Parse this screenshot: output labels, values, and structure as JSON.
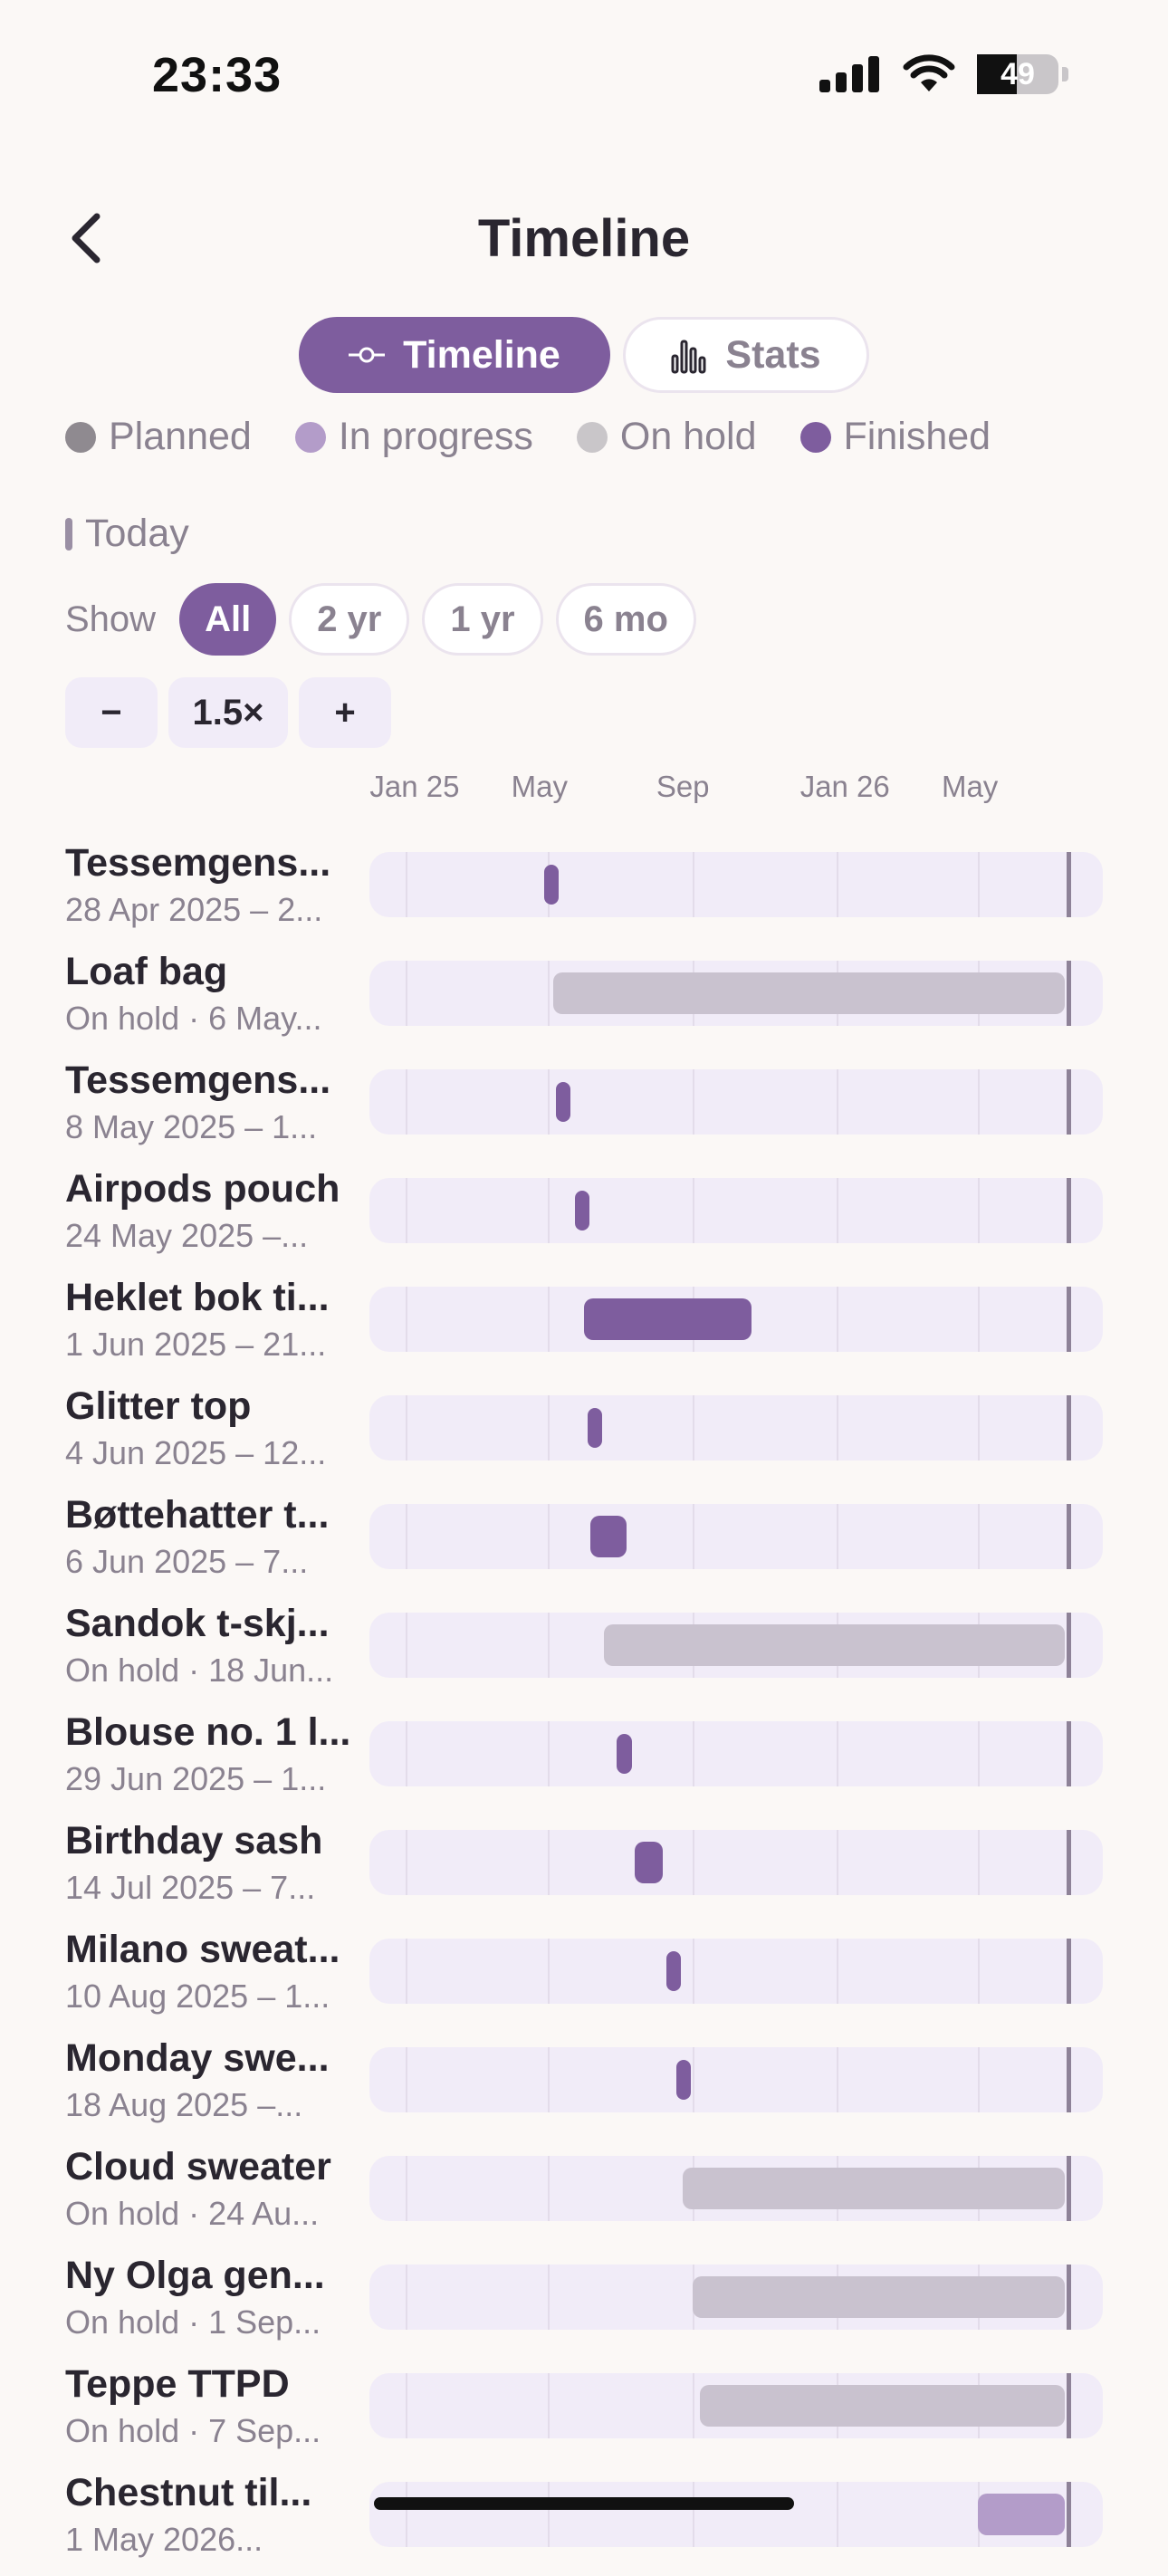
{
  "status_bar": {
    "time": "23:33",
    "battery": "49",
    "battery_level": 0.49
  },
  "nav": {
    "title": "Timeline"
  },
  "segments": [
    {
      "label": "Timeline",
      "icon": "commit-icon",
      "active": true
    },
    {
      "label": "Stats",
      "icon": "bar-chart-icon",
      "active": false
    }
  ],
  "legend": [
    {
      "label": "Planned",
      "color": "#8f8a90"
    },
    {
      "label": "In progress",
      "color": "#b39cc9"
    },
    {
      "label": "On hold",
      "color": "#c9c6c9"
    },
    {
      "label": "Finished",
      "color": "#7e5d9e"
    }
  ],
  "today_label": "Today",
  "filters": {
    "label": "Show",
    "options": [
      "All",
      "2 yr",
      "1 yr",
      "6 mo"
    ],
    "selected": "All"
  },
  "zoom": {
    "minus": "−",
    "value": "1.5×",
    "plus": "+"
  },
  "colors": {
    "finished": "#7e5d9e",
    "on_hold": "#c9c2cf",
    "in_progress": "#b39cc9",
    "track": "#f1ecf8",
    "accent": "#7e5d9e"
  },
  "timeline": {
    "range_start": "2024-12-01",
    "range_end": "2026-08-15",
    "today": "2026-07-15",
    "gridlines": [
      "2025-01-01",
      "2025-05-01",
      "2025-09-01",
      "2026-01-01",
      "2026-05-01"
    ],
    "month_labels": [
      {
        "text": "Jan 25",
        "date": "2025-01-01"
      },
      {
        "text": "May",
        "date": "2025-05-01"
      },
      {
        "text": "Sep",
        "date": "2025-09-01"
      },
      {
        "text": "Jan 26",
        "date": "2026-01-01"
      },
      {
        "text": "May",
        "date": "2026-05-01"
      }
    ]
  },
  "projects": [
    {
      "name": "Tessemgens...",
      "subtitle": "28 Apr 2025 – 2...",
      "status": "finished",
      "start": "2025-04-28",
      "end": "2025-05-02"
    },
    {
      "name": "Loaf bag",
      "subtitle": "On hold · 6 May...",
      "status": "on_hold",
      "start": "2025-05-06",
      "end": "2026-07-14"
    },
    {
      "name": "Tessemgens...",
      "subtitle": "8 May 2025 – 1...",
      "status": "finished",
      "start": "2025-05-08",
      "end": "2025-05-12"
    },
    {
      "name": "Airpods pouch",
      "subtitle": "24 May 2025 –...",
      "status": "finished",
      "start": "2025-05-24",
      "end": "2025-05-30"
    },
    {
      "name": "Heklet bok ti...",
      "subtitle": "1 Jun 2025 – 21...",
      "status": "finished",
      "start": "2025-06-01",
      "end": "2025-10-21"
    },
    {
      "name": "Glitter top",
      "subtitle": "4 Jun 2025 – 12...",
      "status": "finished",
      "start": "2025-06-04",
      "end": "2025-06-12"
    },
    {
      "name": "Bøttehatter t...",
      "subtitle": "6 Jun 2025 – 7...",
      "status": "finished",
      "start": "2025-06-06",
      "end": "2025-07-07"
    },
    {
      "name": "Sandok t-skj...",
      "subtitle": "On hold · 18 Jun...",
      "status": "on_hold",
      "start": "2025-06-18",
      "end": "2026-07-14"
    },
    {
      "name": "Blouse no. 1 l...",
      "subtitle": "29 Jun 2025 – 1...",
      "status": "finished",
      "start": "2025-06-29",
      "end": "2025-07-12"
    },
    {
      "name": "Birthday sash",
      "subtitle": "14 Jul 2025 – 7...",
      "status": "finished",
      "start": "2025-07-14",
      "end": "2025-08-07"
    },
    {
      "name": "Milano sweat...",
      "subtitle": "10 Aug 2025 – 1...",
      "status": "finished",
      "start": "2025-08-10",
      "end": "2025-08-18"
    },
    {
      "name": "Monday swe...",
      "subtitle": "18 Aug 2025 –...",
      "status": "finished",
      "start": "2025-08-18",
      "end": "2025-08-26"
    },
    {
      "name": "Cloud sweater",
      "subtitle": "On hold · 24 Au...",
      "status": "on_hold",
      "start": "2025-08-24",
      "end": "2026-07-14"
    },
    {
      "name": "Ny Olga gen...",
      "subtitle": "On hold · 1 Sep...",
      "status": "on_hold",
      "start": "2025-09-01",
      "end": "2026-07-14"
    },
    {
      "name": "Teppe TTPD",
      "subtitle": "On hold · 7 Sep...",
      "status": "on_hold",
      "start": "2025-09-07",
      "end": "2026-07-14"
    },
    {
      "name": "Chestnut til...",
      "subtitle": "1 May 2026...",
      "status": "in_progress",
      "start": "2026-05-01",
      "end": "2026-07-14"
    }
  ]
}
